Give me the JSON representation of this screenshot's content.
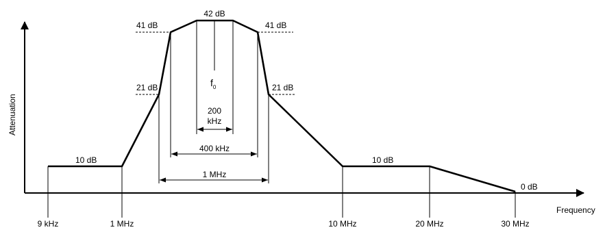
{
  "axes": {
    "y_label": "Attenuation",
    "x_label": "Frequency"
  },
  "frequency_ticks": [
    "9 kHz",
    "1 MHz",
    "10 MHz",
    "20 MHz",
    "30 MHz"
  ],
  "levels": {
    "left_10": "10 dB",
    "left_21": "21 dB",
    "left_41": "41 dB",
    "top_42": "42 dB",
    "right_41": "41 dB",
    "right_21": "21 dB",
    "right_10": "10 dB",
    "end_0": "0 dB"
  },
  "center": {
    "f0_main": "f",
    "f0_sub": "0"
  },
  "bandwidths": {
    "bw_200_line1": "200",
    "bw_200_line2": "kHz",
    "bw_400": "400 kHz",
    "bw_1mhz": "1 MHz"
  }
}
